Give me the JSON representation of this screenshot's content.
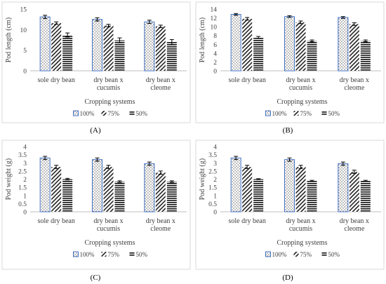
{
  "figure": {
    "panel_labels": [
      "(A)",
      "(B)",
      "(C)",
      "(D)"
    ]
  },
  "colors": {
    "frame": "#d9d9d9",
    "bar_100_outline": "#4472c4",
    "pattern_dots": "#222222",
    "axis_text": "#404040",
    "error_bar": "#000000"
  },
  "legend_patterns": [
    "dots",
    "diagonal",
    "horizontal"
  ],
  "chart_data": [
    {
      "type": "bar",
      "panel": "A",
      "categories": [
        [
          "sole dry bean"
        ],
        [
          "dry bean x",
          "cucumis"
        ],
        [
          "dry bean x",
          "cleome"
        ]
      ],
      "series": [
        {
          "name": "100%",
          "values": [
            13.1,
            12.5,
            11.9
          ],
          "errors": [
            0.4,
            0.4,
            0.4
          ]
        },
        {
          "name": "75%",
          "values": [
            11.6,
            11.0,
            10.8
          ],
          "errors": [
            0.3,
            0.3,
            0.3
          ]
        },
        {
          "name": "50%",
          "values": [
            8.7,
            7.4,
            7.0
          ],
          "errors": [
            0.5,
            0.6,
            0.6
          ]
        }
      ],
      "ylabel": "Pod length (cm)",
      "xlabel": "Cropping systems",
      "ylim": [
        0,
        15
      ],
      "yticks": [
        0,
        5,
        10,
        15
      ],
      "legend_position": "bottom"
    },
    {
      "type": "bar",
      "panel": "B",
      "categories": [
        [
          "sole dry bean"
        ],
        [
          "dry bean x",
          "cucumis"
        ],
        [
          "dry bean x",
          "cleome"
        ]
      ],
      "series": [
        {
          "name": "100%",
          "values": [
            12.8,
            12.3,
            12.1
          ],
          "errors": [
            0.2,
            0.2,
            0.2
          ]
        },
        {
          "name": "75%",
          "values": [
            11.8,
            11.0,
            10.6
          ],
          "errors": [
            0.3,
            0.3,
            0.3
          ]
        },
        {
          "name": "50%",
          "values": [
            7.6,
            6.8,
            6.8
          ],
          "errors": [
            0.2,
            0.2,
            0.2
          ]
        }
      ],
      "ylabel": "Pod length (cm)",
      "xlabel": "Cropping systems",
      "ylim": [
        0,
        14
      ],
      "yticks": [
        0,
        2,
        4,
        6,
        8,
        10,
        12,
        14
      ],
      "legend_position": "bottom"
    },
    {
      "type": "bar",
      "panel": "C",
      "categories": [
        [
          "sole dry bean"
        ],
        [
          "dry bean x",
          "cucumis"
        ],
        [
          "dry bean x",
          "cleome"
        ]
      ],
      "series": [
        {
          "name": "100%",
          "values": [
            3.3,
            3.2,
            2.95
          ],
          "errors": [
            0.1,
            0.1,
            0.1
          ]
        },
        {
          "name": "75%",
          "values": [
            2.75,
            2.75,
            2.4
          ],
          "errors": [
            0.1,
            0.1,
            0.1
          ]
        },
        {
          "name": "50%",
          "values": [
            2.0,
            1.85,
            1.85
          ],
          "errors": [
            0.05,
            0.05,
            0.05
          ]
        }
      ],
      "ylabel": "Pod weight (g)",
      "xlabel": "Cropping systems",
      "ylim": [
        0,
        4
      ],
      "yticks": [
        "0",
        "0.5",
        "1",
        "1.5",
        "2",
        "2.5",
        "3",
        "3.5",
        "4"
      ],
      "legend_position": "bottom"
    },
    {
      "type": "bar",
      "panel": "D",
      "categories": [
        [
          "sole dry bean"
        ],
        [
          "dry bean x",
          "cucumis"
        ],
        [
          "dry bean x",
          "cleome"
        ]
      ],
      "series": [
        {
          "name": "100%",
          "values": [
            3.3,
            3.2,
            2.95
          ],
          "errors": [
            0.1,
            0.1,
            0.1
          ]
        },
        {
          "name": "75%",
          "values": [
            2.75,
            2.75,
            2.45
          ],
          "errors": [
            0.1,
            0.1,
            0.1
          ]
        },
        {
          "name": "50%",
          "values": [
            2.0,
            1.9,
            1.9
          ],
          "errors": [
            0.03,
            0.03,
            0.03
          ]
        }
      ],
      "ylabel": "Pod weight (g)",
      "xlabel": "Cropping systems",
      "ylim": [
        0,
        4
      ],
      "yticks": [
        "0",
        "0.5",
        "1",
        "1.5",
        "2",
        "2.5",
        "3",
        "3.5",
        "4"
      ],
      "legend_position": "bottom"
    }
  ]
}
